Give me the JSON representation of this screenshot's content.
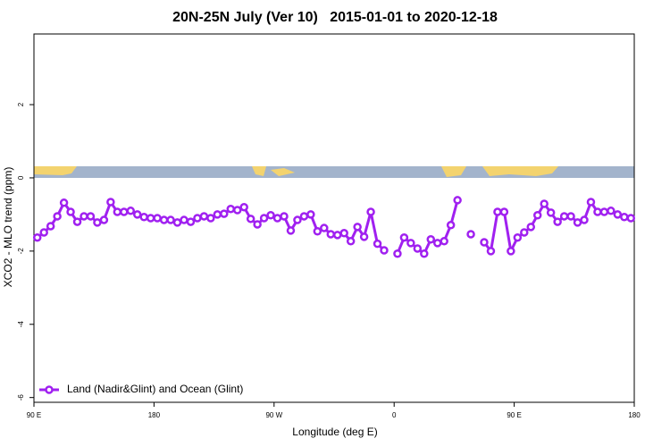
{
  "chart_data": {
    "type": "line",
    "title": "20N-25N July (Ver 10)   2015-01-01 to 2020-12-18",
    "xlabel": "Longitude (deg E)",
    "ylabel": "XCO2 - MLO trend (ppm)",
    "xlim": [
      90,
      540
    ],
    "ylim": [
      -6.13,
      3.93
    ],
    "xticks": [
      {
        "value": 90,
        "label": "90 E"
      },
      180,
      {
        "value": 270,
        "label": "90 W"
      },
      {
        "value": 360,
        "label": "0"
      },
      {
        "value": 450,
        "label": "90 E"
      },
      {
        "value": 540,
        "label": "180"
      }
    ],
    "yticks": [
      -6,
      -4,
      -2,
      0,
      2
    ],
    "legend": "bottom-left",
    "x": [
      92.5,
      97.5,
      102.5,
      107.5,
      112.5,
      117.5,
      122.5,
      127.5,
      132.5,
      137.5,
      142.5,
      147.5,
      152.5,
      157.5,
      162.5,
      167.5,
      172.5,
      177.5,
      182.5,
      187.5,
      192.5,
      197.5,
      202.5,
      207.5,
      212.5,
      217.5,
      222.5,
      227.5,
      232.5,
      237.5,
      242.5,
      247.5,
      252.5,
      257.5,
      262.5,
      267.5,
      272.5,
      277.5,
      282.5,
      287.5,
      292.5,
      297.5,
      302.5,
      307.5,
      312.5,
      317.5,
      322.5,
      327.5,
      332.5,
      337.5,
      342.5,
      347.5,
      352.5,
      357.5,
      362.5,
      367.5,
      372.5,
      377.5,
      382.5,
      387.5,
      392.5,
      397.5,
      402.5,
      407.5,
      412.5,
      417.5,
      422.5,
      427.5,
      432.5,
      437.5,
      442.5,
      447.5,
      452.5,
      457.5,
      462.5,
      467.5,
      472.5,
      477.5,
      482.5,
      487.5,
      492.5,
      497.5,
      502.5,
      507.5,
      512.5,
      517.5,
      522.5,
      527.5,
      532.5,
      537.5
    ],
    "series": [
      {
        "name": "Land (Nadir&Glint) and Ocean (Glint)",
        "color": "#a020f0",
        "values": [
          -1.63,
          -1.49,
          -1.32,
          -1.05,
          -0.68,
          -0.93,
          -1.2,
          -1.05,
          -1.05,
          -1.22,
          -1.15,
          -0.66,
          -0.93,
          -0.93,
          -0.9,
          -1.0,
          -1.07,
          -1.1,
          -1.1,
          -1.15,
          -1.15,
          -1.22,
          -1.15,
          -1.2,
          -1.1,
          -1.05,
          -1.1,
          -1.0,
          -0.98,
          -0.85,
          -0.88,
          -0.8,
          -1.12,
          -1.27,
          -1.1,
          -1.02,
          -1.1,
          -1.05,
          -1.44,
          -1.15,
          -1.05,
          -1.0,
          -1.46,
          -1.37,
          -1.54,
          -1.56,
          -1.51,
          -1.73,
          -1.34,
          -1.61,
          -0.93,
          -1.8,
          -1.98,
          null,
          -2.07,
          -1.63,
          -1.78,
          -1.93,
          -2.07,
          -1.68,
          -1.78,
          -1.73,
          -1.29,
          -0.61,
          null,
          -1.54,
          null,
          -1.76,
          -2.0,
          -0.93,
          -0.93,
          -2.0,
          -1.63,
          -1.49,
          -1.34,
          -1.02,
          -0.71,
          -0.95,
          -1.2,
          -1.05,
          -1.05,
          -1.22,
          -1.15,
          -0.66,
          -0.93,
          -0.93,
          -0.9,
          -1.0,
          -1.07,
          -1.1
        ]
      }
    ]
  }
}
